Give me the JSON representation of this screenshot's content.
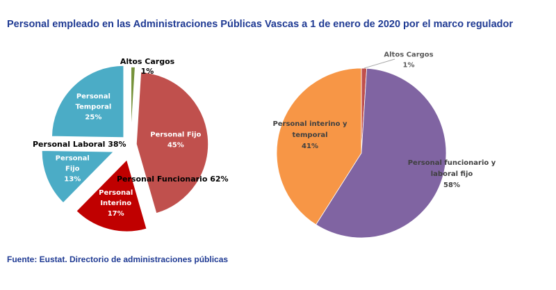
{
  "title": "Personal empleado en las Administraciones Públicas Vascas a 1 de enero de 2020 por el marco regulador",
  "source": "Fuente: Eustat. Directorio de administraciones públicas",
  "chart_data": [
    {
      "type": "pie",
      "slices": [
        {
          "name": "Altos Cargos",
          "value": 1,
          "label_lines": [
            "Altos Cargos",
            "1%"
          ],
          "color": "#77933c"
        },
        {
          "name": "Personal Fijo",
          "value": 45,
          "label_lines": [
            "Personal Fijo",
            "45%"
          ],
          "color": "#c0504d"
        },
        {
          "name": "Personal Interino",
          "value": 17,
          "label_lines": [
            "Personal",
            "Interino",
            "17%"
          ],
          "color": "#c00000"
        },
        {
          "name": "Personal Fijo",
          "value": 13,
          "label_lines": [
            "Personal",
            "Fijo",
            "13%"
          ],
          "color": "#4bacc6"
        },
        {
          "name": "Personal Temporal",
          "value": 25,
          "label_lines": [
            "Personal",
            "Temporal",
            "25%"
          ],
          "color": "#4bacc6"
        }
      ],
      "group_labels": {
        "laboral": "Personal Laboral  38%",
        "funcionario": "Personal Funcionario 62%"
      }
    },
    {
      "type": "pie",
      "slices": [
        {
          "name": "Altos Cargos",
          "value": 1,
          "label_lines": [
            "Altos Cargos",
            "1%"
          ],
          "color": "#c0504d"
        },
        {
          "name": "Personal funcionario y laboral fijo",
          "value": 58,
          "label_lines": [
            "Personal funcionario y",
            "laboral fijo",
            "58%"
          ],
          "color": "#8064a2"
        },
        {
          "name": "Personal interino y temporal",
          "value": 41,
          "label_lines": [
            "Personal interino y",
            "temporal",
            "41%"
          ],
          "color": "#f79646"
        }
      ]
    }
  ]
}
